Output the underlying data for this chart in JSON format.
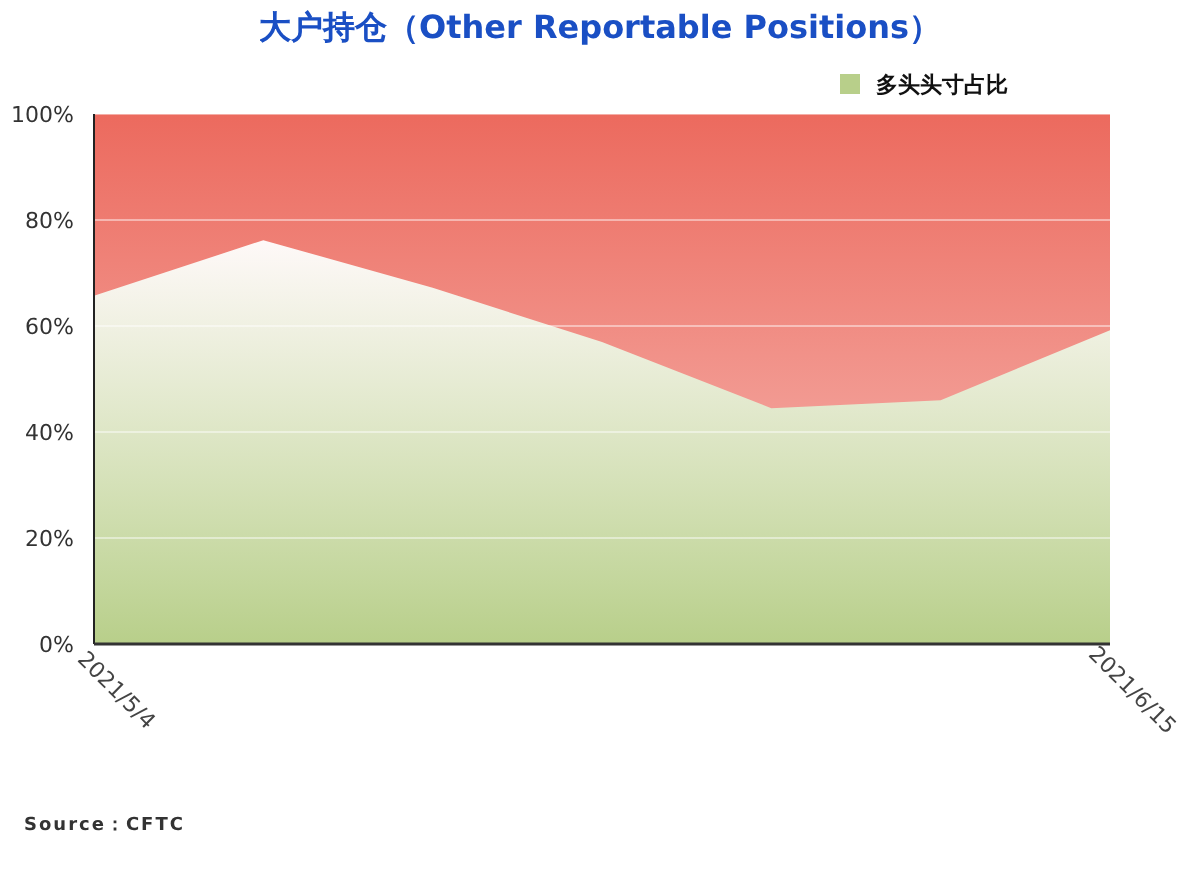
{
  "chart_data": {
    "type": "area",
    "title": "大户持仓（Other Reportable Positions）",
    "categories": [
      "2021/5/4",
      null,
      null,
      null,
      null,
      null,
      "2021/6/15"
    ],
    "series": [
      {
        "name": "多头头寸占比",
        "color": "#b8cf8a",
        "values": [
          65.7,
          76.2,
          67.2,
          57,
          44.5,
          46,
          59.2
        ]
      }
    ],
    "ylim": [
      0,
      100
    ],
    "yticks": [
      {
        "value": 0,
        "label": "0%"
      },
      {
        "value": 20,
        "label": "20%"
      },
      {
        "value": 40,
        "label": "40%"
      },
      {
        "value": 60,
        "label": "60%"
      },
      {
        "value": 80,
        "label": "80%"
      },
      {
        "value": 100,
        "label": "100%"
      }
    ],
    "bands": [
      {
        "axis": "y",
        "from": 0,
        "to": 100,
        "color": "#ec6a5e"
      }
    ],
    "grid": "y",
    "legend": "top right",
    "annotations": [
      "Source：CFTC"
    ]
  }
}
